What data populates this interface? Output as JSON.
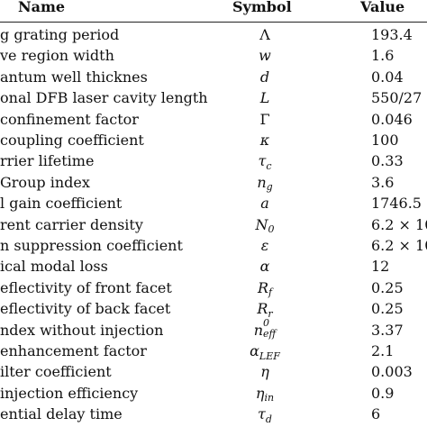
{
  "header": {
    "name": "Name",
    "symbol": "Symbol",
    "value": "Value"
  },
  "rows": [
    {
      "name": "g grating period",
      "sym": "Λ",
      "sub": "",
      "sup": "",
      "value": "193.4"
    },
    {
      "name": "ve region width",
      "sym": "w",
      "sub": "",
      "sup": "",
      "value": "1.6"
    },
    {
      "name": "antum well thicknes",
      "sym": "d",
      "sub": "",
      "sup": "",
      "value": "0.04"
    },
    {
      "name": "onal DFB laser cavity length",
      "sym": "L",
      "sub": "",
      "sup": "",
      "value": "550/27"
    },
    {
      "name": "confinement factor",
      "sym": "Γ",
      "sub": "",
      "sup": "",
      "value": "0.046"
    },
    {
      "name": "coupling coefficient",
      "sym": "κ",
      "sub": "",
      "sup": "",
      "value": "100"
    },
    {
      "name": "rrier lifetime",
      "sym": "τ",
      "sub": "c",
      "sup": "",
      "value": "0.33"
    },
    {
      "name": "Group index",
      "sym": "n",
      "sub": "g",
      "sup": "",
      "value": "3.6"
    },
    {
      "name": "l gain coefficient",
      "sym": "a",
      "sub": "",
      "sup": "",
      "value": "1746.5"
    },
    {
      "name": "rent carrier density",
      "sym": "N",
      "sub": "0",
      "sup": "",
      "value": "6.2 × 10"
    },
    {
      "name": "n suppression coefficient",
      "sym": "ε",
      "sub": "",
      "sup": "",
      "value": "6.2 × 10"
    },
    {
      "name": "ical modal loss",
      "sym": "α",
      "sub": "",
      "sup": "",
      "value": "12"
    },
    {
      "name": "eflectivity of front facet",
      "sym": "R",
      "sub": "f",
      "sup": "",
      "value": "0.25"
    },
    {
      "name": "eflectivity of back facet",
      "sym": "R",
      "sub": "r",
      "sup": "",
      "value": "0.25"
    },
    {
      "name": "ndex without injection",
      "sym": "n",
      "sub": "eff",
      "sup": "0",
      "value": "3.37"
    },
    {
      "name": "enhancement factor",
      "sym": "α",
      "sub": "LEF",
      "sup": "",
      "value": "2.1"
    },
    {
      "name": "ilter coefficient",
      "sym": "η",
      "sub": "",
      "sup": "",
      "value": "0.003"
    },
    {
      "name": "injection efficiency",
      "sym": "η",
      "sub": "in",
      "sup": "",
      "value": "0.9"
    },
    {
      "name": "ential delay time",
      "sym": "τ",
      "sub": "d",
      "sup": "",
      "value": "6"
    }
  ]
}
